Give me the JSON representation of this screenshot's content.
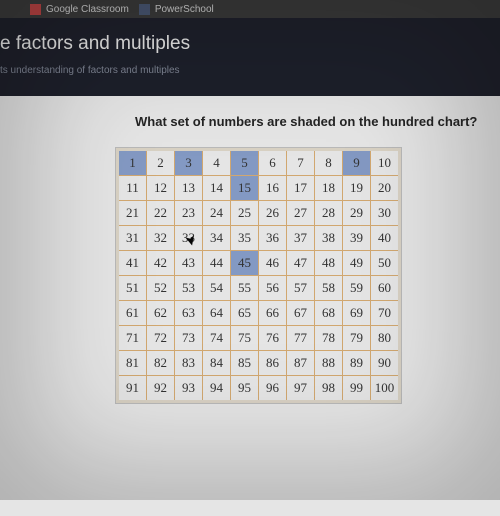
{
  "browser": {
    "tabs": [
      {
        "label": "Google Classroom",
        "icon": "gc"
      },
      {
        "label": "PowerSchool",
        "icon": "ps"
      }
    ]
  },
  "header": {
    "title_partial": "e factors and multiples",
    "subtitle_partial": "ts understanding of factors and multiples"
  },
  "question": "What set of numbers are shaded on the hundred chart?",
  "chart": {
    "rows": 10,
    "cols": 10,
    "shaded_values": [
      1,
      3,
      5,
      9,
      15,
      45
    ],
    "cell_bg": "#ffffff",
    "shaded_bg": "#8fa8d8",
    "border_color": "#e8b878",
    "font_family": "Times New Roman",
    "font_size": 13
  },
  "bottom_text_partial": "",
  "cursor_pos": {
    "cell_value": 33
  },
  "colors": {
    "dark_header": "#1a1d29",
    "content_bg": "#ffffff",
    "browser_bar": "#3a3a3a"
  }
}
